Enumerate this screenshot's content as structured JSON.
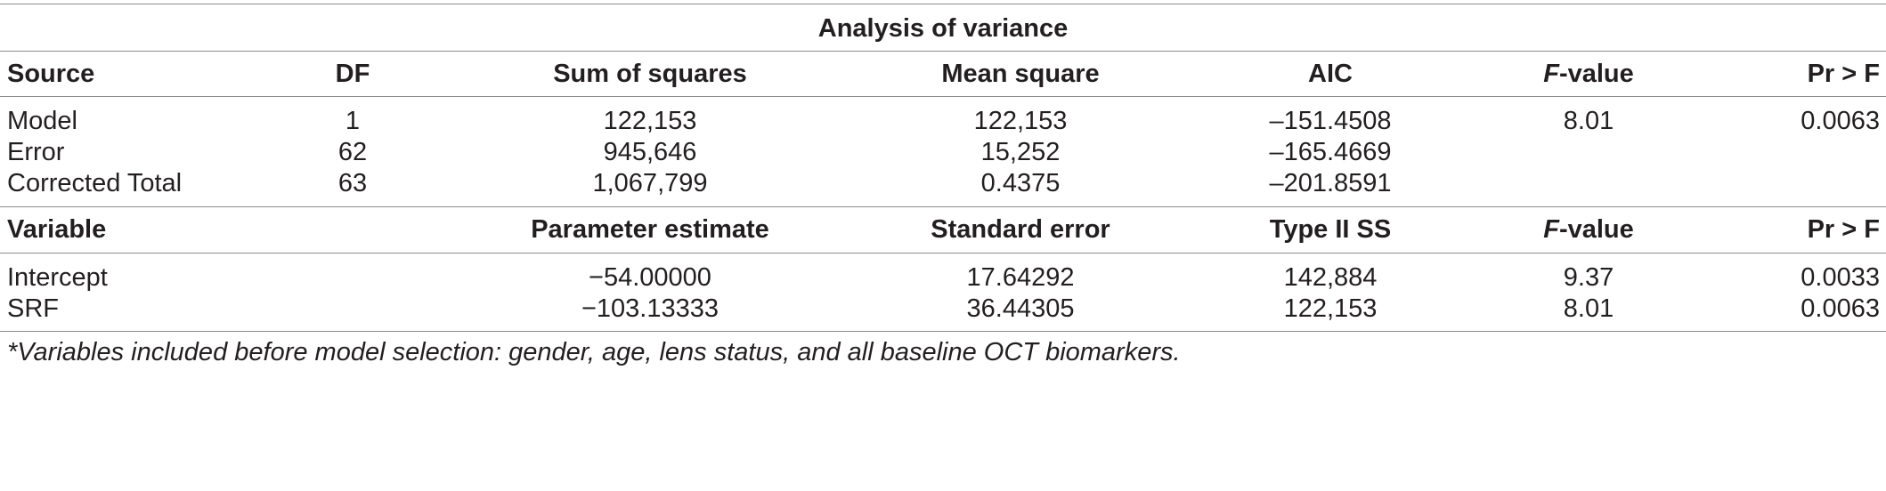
{
  "title": "Analysis of variance",
  "anova": {
    "headers": {
      "source": "Source",
      "df": "DF",
      "sum_of_squares": "Sum of squares",
      "mean_square": "Mean square",
      "aic": "AIC",
      "f_value_italic": "F",
      "f_value_rest": "-value",
      "pr_f": "Pr > F"
    },
    "rows": [
      {
        "source": "Model",
        "df": "1",
        "ss": "122,153",
        "ms": "122,153",
        "aic": "–151.4508",
        "f": "8.01",
        "p": "0.0063"
      },
      {
        "source": "Error",
        "df": "62",
        "ss": "945,646",
        "ms": "15,252",
        "aic": "–165.4669",
        "f": "",
        "p": ""
      },
      {
        "source": "Corrected Total",
        "df": "63",
        "ss": "1,067,799",
        "ms": "0.4375",
        "aic": "–201.8591",
        "f": "",
        "p": ""
      }
    ]
  },
  "params": {
    "headers": {
      "variable": "Variable",
      "estimate": "Parameter estimate",
      "std_error": "Standard error",
      "type2ss": "Type II SS",
      "f_value_italic": "F",
      "f_value_rest": "-value",
      "pr_f": "Pr > F"
    },
    "rows": [
      {
        "variable": "Intercept",
        "estimate": "−54.00000",
        "se": "17.64292",
        "ss": "142,884",
        "f": "9.37",
        "p": "0.0033"
      },
      {
        "variable": "SRF",
        "estimate": "−103.13333",
        "se": "36.44305",
        "ss": "122,153",
        "f": "8.01",
        "p": "0.0063"
      }
    ]
  },
  "footnote": "*Variables included before model selection: gender, age, lens status, and all baseline OCT biomarkers."
}
